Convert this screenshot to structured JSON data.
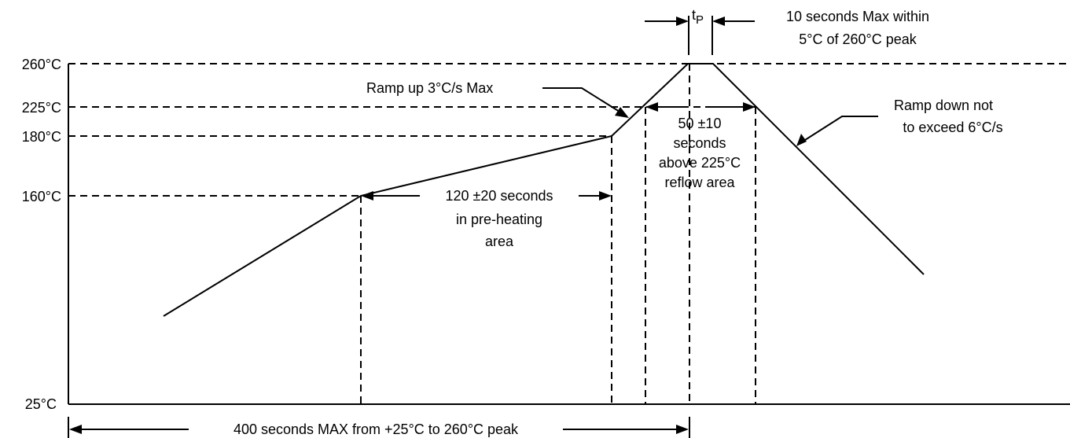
{
  "axis": {
    "temperature_labels": {
      "t260": "260°C",
      "t225": "225°C",
      "t180": "180°C",
      "t160": "160°C",
      "t25": "25°C"
    }
  },
  "annotations": {
    "tp_letter": "t",
    "tp_subscript": "P",
    "peak_time_line1": "10 seconds Max within",
    "peak_time_line2": "5°C of 260°C peak",
    "ramp_up": "Ramp up 3°C/s Max",
    "reflow_line1": "50 ±10",
    "reflow_line2": "seconds",
    "reflow_line3": "above 225°C",
    "reflow_line4": "reflow area",
    "ramp_down_line1": "Ramp down not",
    "ramp_down_line2": "to exceed 6°C/s",
    "preheat_line1": "120 ±20 seconds",
    "preheat_line2": "in pre-heating",
    "preheat_line3": "area",
    "total_time": "400 seconds MAX from +25°C to 260°C peak"
  }
}
